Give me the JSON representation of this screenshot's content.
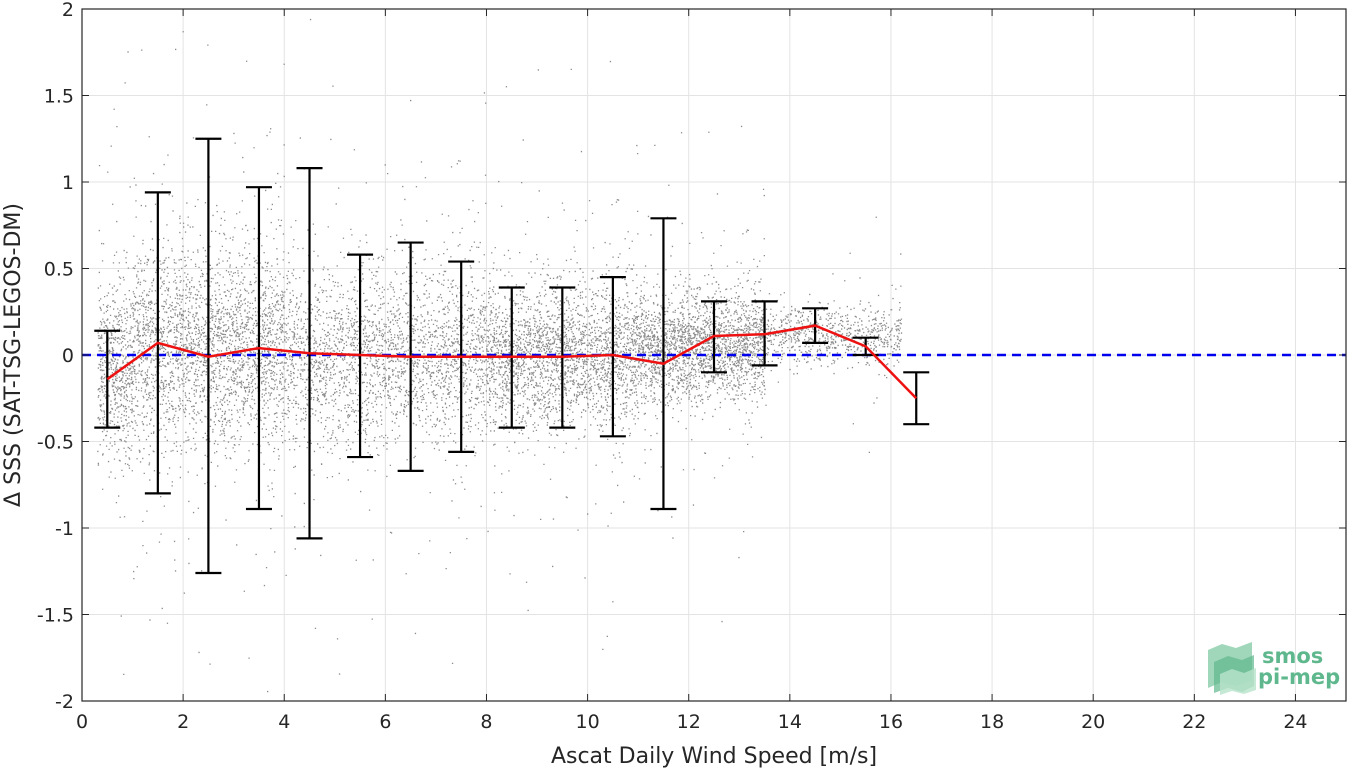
{
  "chart_data": {
    "type": "scatter",
    "title": "",
    "xlabel": "Ascat Daily Wind Speed [m/s]",
    "ylabel": "Δ SSS (SAT-TSG-LEGOS-DM)",
    "xlim": [
      0,
      25
    ],
    "ylim": [
      -2,
      2
    ],
    "xticks": [
      0,
      2,
      4,
      6,
      8,
      10,
      12,
      14,
      16,
      18,
      20,
      22,
      24
    ],
    "yticks": [
      -2,
      -1.5,
      -1,
      -0.5,
      0,
      0.5,
      1,
      1.5,
      2
    ],
    "xtick_labels": [
      "0",
      "2",
      "4",
      "6",
      "8",
      "10",
      "12",
      "14",
      "16",
      "18",
      "20",
      "22",
      "24"
    ],
    "ytick_labels": [
      "-2",
      "-1.5",
      "-1",
      "-0.5",
      "0",
      "0.5",
      "1",
      "1.5",
      "2"
    ],
    "grid": true,
    "series": [
      {
        "kind": "scatter-cloud",
        "color": "#808080",
        "description_of_density": [
          {
            "x_range": [
              0.3,
              1.0
            ],
            "y_center": -0.1,
            "y_spread": 0.25
          },
          {
            "x_range": [
              1.0,
              2.0
            ],
            "y_center": 0.05,
            "y_spread": 0.3
          },
          {
            "x_range": [
              2.0,
              4.0
            ],
            "y_center": 0.05,
            "y_spread": 0.28
          },
          {
            "x_range": [
              4.0,
              8.0
            ],
            "y_center": 0.0,
            "y_spread": 0.25
          },
          {
            "x_range": [
              8.0,
              11.0
            ],
            "y_center": 0.0,
            "y_spread": 0.2
          },
          {
            "x_range": [
              11.0,
              13.5
            ],
            "y_center": 0.05,
            "y_spread": 0.15
          },
          {
            "x_range": [
              13.5,
              16.2
            ],
            "y_center": 0.12,
            "y_spread": 0.08
          }
        ]
      },
      {
        "kind": "mean-line",
        "color": "#ee1111",
        "x": [
          0.5,
          1.5,
          2.5,
          3.5,
          4.5,
          5.5,
          6.5,
          7.5,
          8.5,
          9.5,
          10.5,
          11.5,
          12.5,
          13.5,
          14.5,
          15.5,
          16.5
        ],
        "y": [
          -0.14,
          0.07,
          -0.01,
          0.04,
          0.01,
          0.0,
          -0.01,
          -0.01,
          -0.01,
          -0.01,
          0.0,
          -0.05,
          0.11,
          0.12,
          0.17,
          0.05,
          -0.25
        ]
      },
      {
        "kind": "error-bars",
        "color": "#000000",
        "x": [
          0.5,
          1.5,
          2.5,
          3.5,
          4.5,
          5.5,
          6.5,
          7.5,
          8.5,
          9.5,
          10.5,
          11.5,
          12.5,
          13.5,
          14.5,
          15.5,
          16.5
        ],
        "low": [
          -0.42,
          -0.8,
          -1.26,
          -0.89,
          -1.06,
          -0.59,
          -0.67,
          -0.56,
          -0.42,
          -0.42,
          -0.47,
          -0.89,
          -0.1,
          -0.06,
          0.07,
          0.0,
          -0.4
        ],
        "high": [
          0.14,
          0.94,
          1.25,
          0.97,
          1.08,
          0.58,
          0.65,
          0.54,
          0.39,
          0.39,
          0.45,
          0.79,
          0.31,
          0.31,
          0.27,
          0.1,
          -0.1
        ]
      },
      {
        "kind": "zero-reference",
        "color": "#0000ee",
        "style": "dashed",
        "y": 0
      }
    ]
  },
  "logo": {
    "line1": "smos",
    "line2": "pi-mep",
    "color": "#5fb88d"
  }
}
